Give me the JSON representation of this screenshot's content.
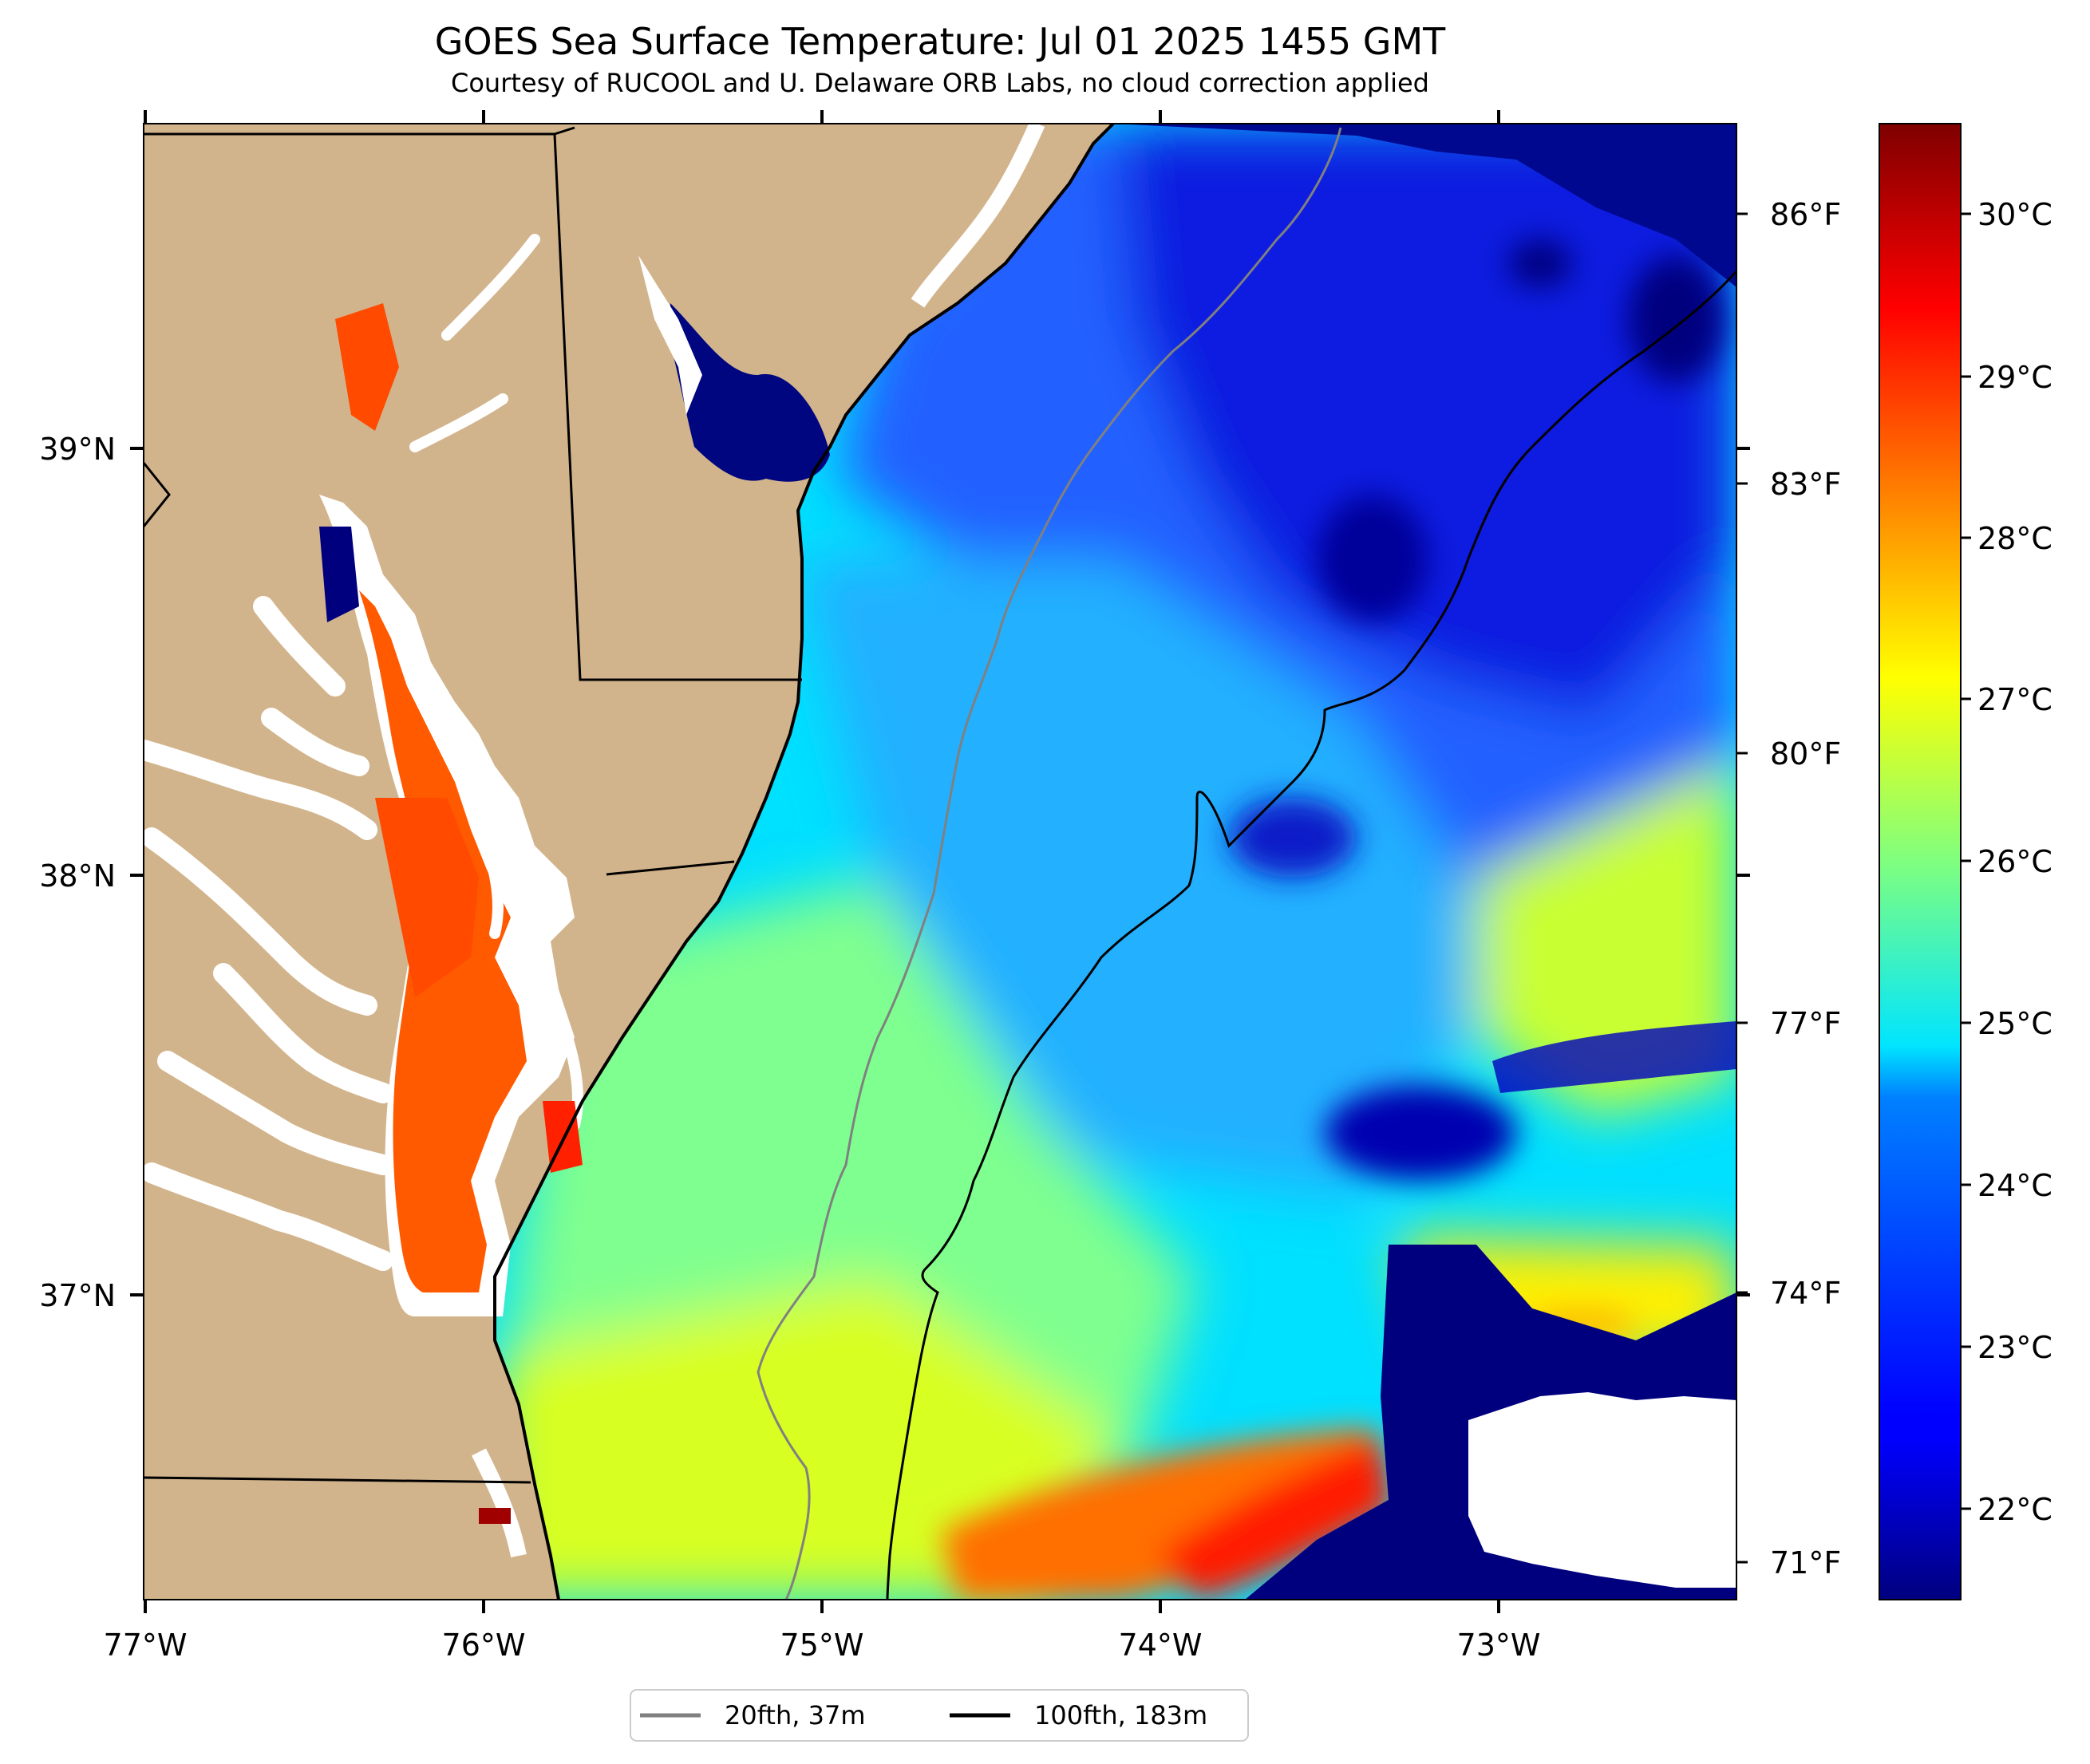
{
  "title": "GOES Sea Surface Temperature: Jul 01 2025 1455 GMT",
  "subtitle": "Courtesy of RUCOOL and U. Delaware ORB Labs, no cloud correction applied",
  "axes": {
    "lon_labels": [
      "77°W",
      "76°W",
      "75°W",
      "74°W",
      "73°W"
    ],
    "lat_labels": [
      "39°N",
      "38°N",
      "37°N"
    ],
    "lon_range": [
      -77.0,
      -72.3
    ],
    "lat_range": [
      36.3,
      39.75
    ]
  },
  "colorbar": {
    "celsius_labels": [
      "30°C",
      "29°C",
      "28°C",
      "27°C",
      "26°C",
      "25°C",
      "24°C",
      "23°C",
      "22°C"
    ],
    "fahrenheit_labels": [
      "86°F",
      "83°F",
      "80°F",
      "77°F",
      "74°F",
      "71°F"
    ],
    "range_c": [
      21.5,
      30.5
    ],
    "colormap": "jet"
  },
  "legend": {
    "items": [
      {
        "label": "20fth, 37m",
        "color": "#808080"
      },
      {
        "label": "100fth, 183m",
        "color": "#000000"
      }
    ]
  },
  "colors": {
    "land": "#D2B48C",
    "no_data": "#ffffff",
    "border": "#000000"
  }
}
